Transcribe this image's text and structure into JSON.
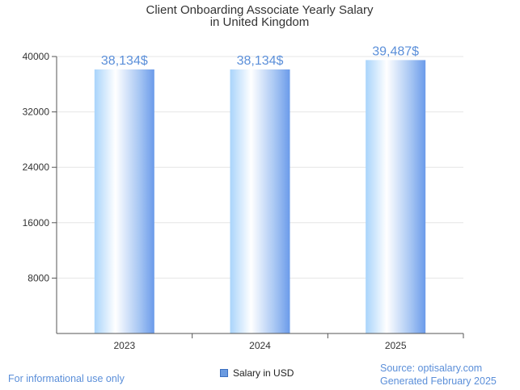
{
  "chart_data": {
    "type": "bar",
    "title_lines": [
      "Client Onboarding Associate Yearly Salary",
      "in United Kingdom"
    ],
    "categories": [
      "2023",
      "2024",
      "2025"
    ],
    "series": [
      {
        "name": "Salary in USD",
        "values": [
          38134,
          38134,
          39487
        ]
      }
    ],
    "data_labels": [
      "38,134$",
      "38,134$",
      "39,487$"
    ],
    "yticks": [
      8000,
      16000,
      24000,
      32000,
      40000
    ],
    "ytick_labels": [
      "8000",
      "16000",
      "24000",
      "32000",
      "40000"
    ],
    "ylim": [
      0,
      40000
    ],
    "xlabel": "",
    "ylabel": "",
    "grid": true,
    "legend": "bottom-center"
  },
  "footer": {
    "note": "For informational use only",
    "source": "Source: optisalary.com",
    "generated": "Generated February 2025"
  },
  "colors": {
    "bar_light": "#ffffff",
    "bar_mid": "#a9d4fb",
    "bar_dark": "#6b9bea",
    "label": "#5b8fd9"
  }
}
